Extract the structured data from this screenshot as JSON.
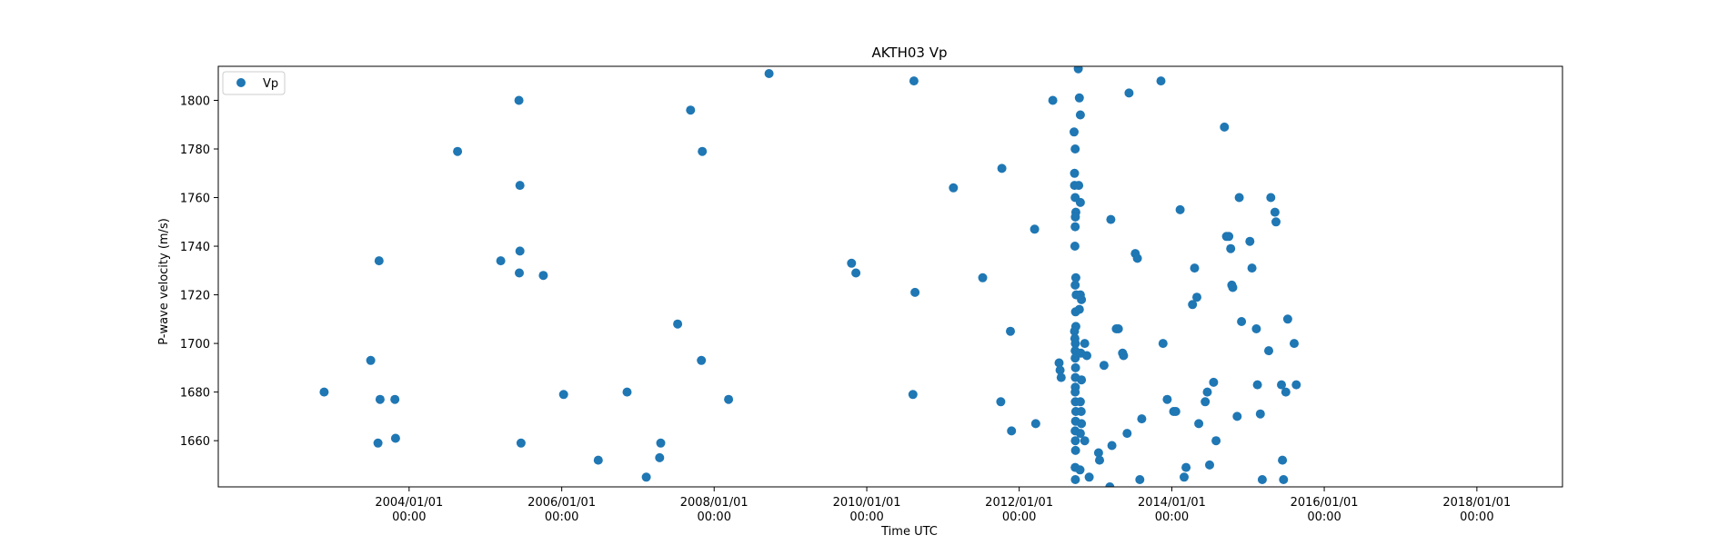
{
  "chart_data": {
    "type": "scatter",
    "title": "AKTH03 Vp",
    "xlabel": "Time UTC",
    "ylabel": "P-wave velocity (m/s)",
    "xlim": [
      "2001-07-01",
      "2019-02-15"
    ],
    "ylim": [
      1641,
      1814
    ],
    "x_ticks": [
      {
        "date": "2004-01-01",
        "line1": "2004/01/01",
        "line2": "00:00"
      },
      {
        "date": "2006-01-01",
        "line1": "2006/01/01",
        "line2": "00:00"
      },
      {
        "date": "2008-01-01",
        "line1": "2008/01/01",
        "line2": "00:00"
      },
      {
        "date": "2010-01-01",
        "line1": "2010/01/01",
        "line2": "00:00"
      },
      {
        "date": "2012-01-01",
        "line1": "2012/01/01",
        "line2": "00:00"
      },
      {
        "date": "2014-01-01",
        "line1": "2014/01/01",
        "line2": "00:00"
      },
      {
        "date": "2016-01-01",
        "line1": "2016/01/01",
        "line2": "00:00"
      },
      {
        "date": "2018-01-01",
        "line1": "2018/01/01",
        "line2": "00:00"
      }
    ],
    "y_ticks": [
      1660,
      1680,
      1700,
      1720,
      1740,
      1760,
      1780,
      1800
    ],
    "grid": false,
    "legend_position": "top-left",
    "series": [
      {
        "name": "Vp",
        "color": "#1f77b4",
        "points": [
          [
            "2002-11-20",
            1680
          ],
          [
            "2003-07-01",
            1693
          ],
          [
            "2003-08-10",
            1734
          ],
          [
            "2003-08-15",
            1677
          ],
          [
            "2003-08-05",
            1659
          ],
          [
            "2003-10-25",
            1677
          ],
          [
            "2003-10-28",
            1661
          ],
          [
            "2004-08-20",
            1779
          ],
          [
            "2005-03-15",
            1734
          ],
          [
            "2005-06-10",
            1800
          ],
          [
            "2005-06-15",
            1765
          ],
          [
            "2005-06-15",
            1738
          ],
          [
            "2005-06-12",
            1729
          ],
          [
            "2005-06-20",
            1659
          ],
          [
            "2005-10-05",
            1728
          ],
          [
            "2006-01-10",
            1679
          ],
          [
            "2006-06-25",
            1652
          ],
          [
            "2006-11-10",
            1680
          ],
          [
            "2007-02-10",
            1645
          ],
          [
            "2007-04-15",
            1653
          ],
          [
            "2007-04-20",
            1659
          ],
          [
            "2007-07-10",
            1708
          ],
          [
            "2007-09-10",
            1796
          ],
          [
            "2007-11-05",
            1779
          ],
          [
            "2007-11-01",
            1693
          ],
          [
            "2008-03-10",
            1677
          ],
          [
            "2008-09-20",
            1811
          ],
          [
            "2009-10-20",
            1733
          ],
          [
            "2009-11-10",
            1729
          ],
          [
            "2010-08-15",
            1808
          ],
          [
            "2010-08-20",
            1721
          ],
          [
            "2010-08-10",
            1679
          ],
          [
            "2011-02-20",
            1764
          ],
          [
            "2011-07-10",
            1727
          ],
          [
            "2011-10-10",
            1772
          ],
          [
            "2011-10-05",
            1676
          ],
          [
            "2011-11-20",
            1705
          ],
          [
            "2011-11-25",
            1664
          ],
          [
            "2012-03-15",
            1747
          ],
          [
            "2012-03-20",
            1667
          ],
          [
            "2012-06-10",
            1800
          ],
          [
            "2012-07-10",
            1692
          ],
          [
            "2012-07-15",
            1689
          ],
          [
            "2012-07-20",
            1686
          ],
          [
            "2012-09-20",
            1787
          ],
          [
            "2012-09-25",
            1780
          ],
          [
            "2012-09-22",
            1770
          ],
          [
            "2012-09-22",
            1765
          ],
          [
            "2012-09-25",
            1760
          ],
          [
            "2012-09-28",
            1754
          ],
          [
            "2012-09-26",
            1752
          ],
          [
            "2012-09-25",
            1748
          ],
          [
            "2012-09-24",
            1740
          ],
          [
            "2012-09-28",
            1727
          ],
          [
            "2012-09-25",
            1724
          ],
          [
            "2012-09-30",
            1720
          ],
          [
            "2012-09-27",
            1713
          ],
          [
            "2012-09-28",
            1707
          ],
          [
            "2012-09-22",
            1705
          ],
          [
            "2012-09-24",
            1702
          ],
          [
            "2012-09-26",
            1700
          ],
          [
            "2012-09-25",
            1697
          ],
          [
            "2012-09-25",
            1694
          ],
          [
            "2012-09-27",
            1690
          ],
          [
            "2012-09-26",
            1686
          ],
          [
            "2012-09-26",
            1682
          ],
          [
            "2012-09-25",
            1680
          ],
          [
            "2012-09-26",
            1676
          ],
          [
            "2012-09-28",
            1672
          ],
          [
            "2012-09-27",
            1668
          ],
          [
            "2012-09-25",
            1664
          ],
          [
            "2012-09-26",
            1660
          ],
          [
            "2012-09-27",
            1656
          ],
          [
            "2012-09-25",
            1649
          ],
          [
            "2012-09-26",
            1644
          ],
          [
            "2012-10-15",
            1801
          ],
          [
            "2012-10-20",
            1794
          ],
          [
            "2012-10-10",
            1813
          ],
          [
            "2012-10-12",
            1765
          ],
          [
            "2012-10-20",
            1758
          ],
          [
            "2012-10-25",
            1718
          ],
          [
            "2012-10-15",
            1714
          ],
          [
            "2012-10-20",
            1720
          ],
          [
            "2012-10-22",
            1696
          ],
          [
            "2012-10-25",
            1685
          ],
          [
            "2012-10-20",
            1676
          ],
          [
            "2012-10-24",
            1672
          ],
          [
            "2012-10-25",
            1667
          ],
          [
            "2012-10-20",
            1663
          ],
          [
            "2012-10-18",
            1648
          ],
          [
            "2012-11-10",
            1700
          ],
          [
            "2012-11-20",
            1695
          ],
          [
            "2012-11-10",
            1660
          ],
          [
            "2012-12-01",
            1645
          ],
          [
            "2013-01-15",
            1655
          ],
          [
            "2013-01-20",
            1652
          ],
          [
            "2013-02-10",
            1691
          ],
          [
            "2013-03-10",
            1641
          ],
          [
            "2013-03-15",
            1751
          ],
          [
            "2013-03-20",
            1658
          ],
          [
            "2013-04-10",
            1706
          ],
          [
            "2013-04-20",
            1706
          ],
          [
            "2013-05-10",
            1696
          ],
          [
            "2013-05-15",
            1695
          ],
          [
            "2013-06-01",
            1663
          ],
          [
            "2013-06-10",
            1803
          ],
          [
            "2013-07-10",
            1737
          ],
          [
            "2013-07-20",
            1735
          ],
          [
            "2013-08-01",
            1644
          ],
          [
            "2013-08-10",
            1669
          ],
          [
            "2013-11-10",
            1808
          ],
          [
            "2013-11-20",
            1700
          ],
          [
            "2013-12-10",
            1677
          ],
          [
            "2014-01-10",
            1672
          ],
          [
            "2014-01-20",
            1672
          ],
          [
            "2014-02-10",
            1755
          ],
          [
            "2014-03-01",
            1645
          ],
          [
            "2014-03-10",
            1649
          ],
          [
            "2014-04-10",
            1716
          ],
          [
            "2014-04-20",
            1731
          ],
          [
            "2014-05-01",
            1719
          ],
          [
            "2014-05-10",
            1667
          ],
          [
            "2014-06-10",
            1676
          ],
          [
            "2014-06-20",
            1680
          ],
          [
            "2014-07-01",
            1650
          ],
          [
            "2014-07-20",
            1684
          ],
          [
            "2014-08-01",
            1660
          ],
          [
            "2014-09-10",
            1789
          ],
          [
            "2014-09-20",
            1744
          ],
          [
            "2014-10-01",
            1744
          ],
          [
            "2014-10-10",
            1739
          ],
          [
            "2014-10-15",
            1724
          ],
          [
            "2014-10-20",
            1723
          ],
          [
            "2014-11-10",
            1670
          ],
          [
            "2014-11-20",
            1760
          ],
          [
            "2014-12-01",
            1709
          ],
          [
            "2015-01-10",
            1742
          ],
          [
            "2015-01-20",
            1731
          ],
          [
            "2015-02-10",
            1706
          ],
          [
            "2015-02-15",
            1683
          ],
          [
            "2015-03-01",
            1671
          ],
          [
            "2015-03-10",
            1644
          ],
          [
            "2015-04-10",
            1697
          ],
          [
            "2015-04-20",
            1760
          ],
          [
            "2015-05-10",
            1754
          ],
          [
            "2015-05-15",
            1750
          ],
          [
            "2015-06-10",
            1683
          ],
          [
            "2015-06-15",
            1652
          ],
          [
            "2015-06-20",
            1644
          ],
          [
            "2015-07-01",
            1680
          ],
          [
            "2015-07-10",
            1710
          ],
          [
            "2015-08-10",
            1700
          ],
          [
            "2015-08-20",
            1683
          ]
        ]
      }
    ]
  }
}
